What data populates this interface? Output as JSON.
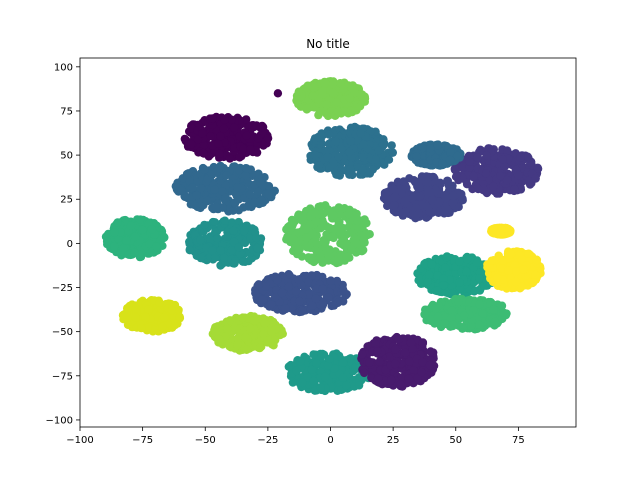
{
  "chart_data": {
    "type": "scatter",
    "title": "No title",
    "xlabel": "",
    "ylabel": "",
    "xlim": [
      -100,
      98
    ],
    "ylim": [
      -104,
      105
    ],
    "xticks": [
      -100,
      -75,
      -50,
      -25,
      0,
      25,
      50,
      75
    ],
    "yticks": [
      -100,
      -75,
      -50,
      -25,
      0,
      25,
      50,
      75,
      100
    ],
    "xtick_labels": [
      "−100",
      "−75",
      "−50",
      "−25",
      "0",
      "25",
      "50",
      "75"
    ],
    "ytick_labels": [
      "−100",
      "−75",
      "−50",
      "−25",
      "0",
      "25",
      "50",
      "75",
      "100"
    ],
    "grid": false,
    "legend": "none",
    "clusters": [
      {
        "center": [
          -41,
          60
        ],
        "spread": [
          18,
          12
        ],
        "color": "#440154"
      },
      {
        "center": [
          -21,
          85
        ],
        "spread": [
          0,
          0
        ],
        "color": "#440154"
      },
      {
        "center": [
          -42,
          31
        ],
        "spread": [
          20,
          13
        ],
        "color": "#31688e"
      },
      {
        "center": [
          8,
          52
        ],
        "spread": [
          17,
          14
        ],
        "color": "#2c718e"
      },
      {
        "center": [
          0,
          82
        ],
        "spread": [
          14,
          10
        ],
        "color": "#7ad151"
      },
      {
        "center": [
          -78,
          3
        ],
        "spread": [
          12,
          11
        ],
        "color": "#2db27d"
      },
      {
        "center": [
          -42,
          0
        ],
        "spread": [
          15,
          13
        ],
        "color": "#21918c"
      },
      {
        "center": [
          -1,
          5
        ],
        "spread": [
          17,
          17
        ],
        "color": "#5ec962"
      },
      {
        "center": [
          -12,
          -28
        ],
        "spread": [
          19,
          11
        ],
        "color": "#3b528b"
      },
      {
        "center": [
          -71,
          -41
        ],
        "spread": [
          12,
          9
        ],
        "color": "#d8e219"
      },
      {
        "center": [
          -33,
          -51
        ],
        "spread": [
          14,
          10
        ],
        "color": "#a5db36"
      },
      {
        "center": [
          -1,
          -73
        ],
        "spread": [
          17,
          11
        ],
        "color": "#1f9a8a"
      },
      {
        "center": [
          27,
          -67
        ],
        "spread": [
          15,
          15
        ],
        "color": "#481b6d"
      },
      {
        "center": [
          50,
          -18
        ],
        "spread": [
          16,
          11
        ],
        "color": "#1fa187"
      },
      {
        "center": [
          54,
          -40
        ],
        "spread": [
          17,
          9
        ],
        "color": "#3dbc74"
      },
      {
        "center": [
          66,
          41
        ],
        "spread": [
          17,
          13
        ],
        "color": "#443983"
      },
      {
        "center": [
          37,
          26
        ],
        "spread": [
          16,
          12
        ],
        "color": "#404688"
      },
      {
        "center": [
          42,
          50
        ],
        "spread": [
          10,
          6
        ],
        "color": "#2f6b8e"
      },
      {
        "center": [
          73,
          -15
        ],
        "spread": [
          11,
          11
        ],
        "color": "#fde725"
      },
      {
        "center": [
          68,
          7
        ],
        "spread": [
          4,
          2
        ],
        "color": "#fde725"
      }
    ]
  }
}
